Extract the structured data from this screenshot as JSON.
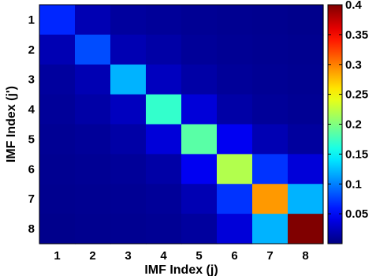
{
  "chart_data": {
    "type": "heatmap",
    "xlabel": "IMF Index (j)",
    "ylabel": "IMF Index (j')",
    "x_categories": [
      "1",
      "2",
      "3",
      "4",
      "5",
      "6",
      "7",
      "8"
    ],
    "y_categories": [
      "1",
      "2",
      "3",
      "4",
      "5",
      "6",
      "7",
      "8"
    ],
    "colormap": "jet",
    "clim": [
      0.0,
      0.4
    ],
    "colorbar_ticks": [
      "0.05",
      "0.1",
      "0.15",
      "0.2",
      "0.25",
      "0.3",
      "0.35",
      "0.4"
    ],
    "colorbar_tick_values": [
      0.05,
      0.1,
      0.15,
      0.2,
      0.25,
      0.3,
      0.35,
      0.4
    ],
    "grid": false,
    "values": [
      [
        0.065,
        0.02,
        0.012,
        0.01,
        0.008,
        0.007,
        0.006,
        0.005
      ],
      [
        0.02,
        0.08,
        0.02,
        0.015,
        0.01,
        0.008,
        0.007,
        0.006
      ],
      [
        0.012,
        0.02,
        0.12,
        0.025,
        0.015,
        0.01,
        0.008,
        0.007
      ],
      [
        0.01,
        0.015,
        0.025,
        0.17,
        0.035,
        0.015,
        0.01,
        0.008
      ],
      [
        0.008,
        0.01,
        0.015,
        0.035,
        0.185,
        0.045,
        0.02,
        0.012
      ],
      [
        0.007,
        0.008,
        0.01,
        0.015,
        0.045,
        0.22,
        0.07,
        0.035
      ],
      [
        0.006,
        0.007,
        0.008,
        0.01,
        0.02,
        0.07,
        0.29,
        0.12
      ],
      [
        0.005,
        0.006,
        0.007,
        0.008,
        0.012,
        0.035,
        0.12,
        0.41
      ]
    ]
  }
}
